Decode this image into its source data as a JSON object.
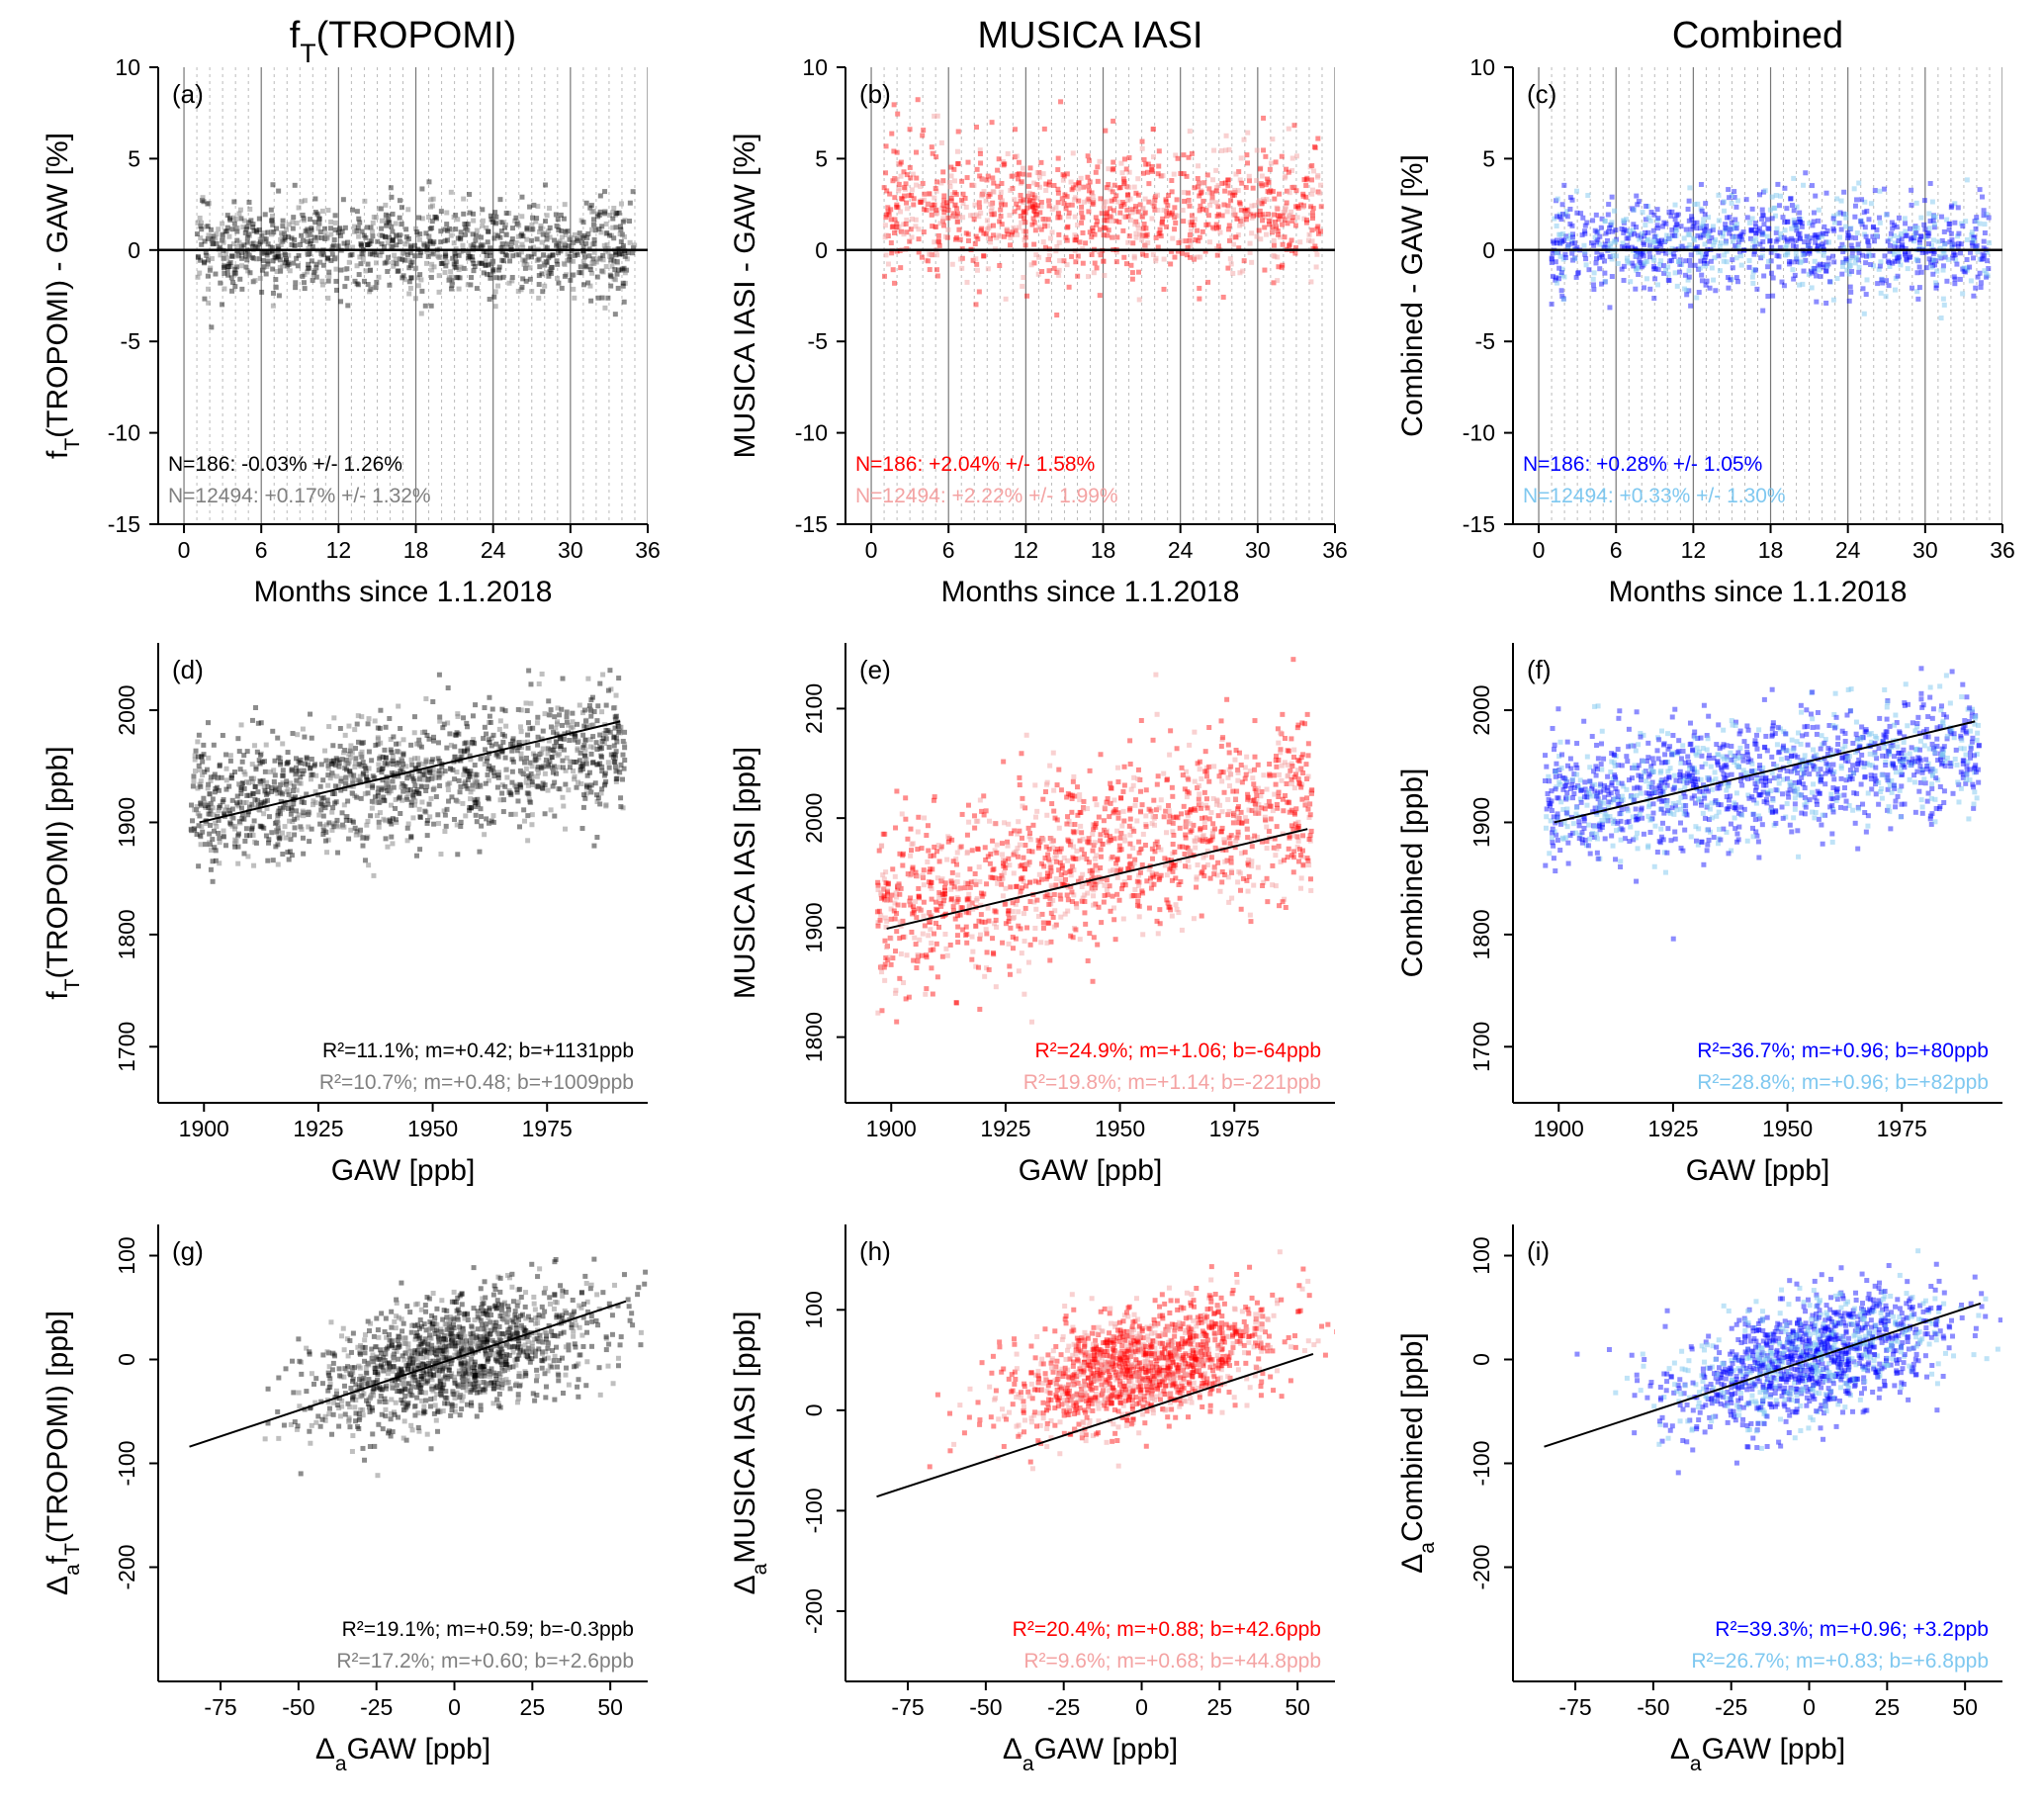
{
  "column_titles": [
    {
      "main": "f",
      "sub": "T",
      "rest": "(TROPOMI)"
    },
    {
      "main": "MUSICA IASI",
      "sub": "",
      "rest": ""
    },
    {
      "main": "Combined",
      "sub": "",
      "rest": ""
    }
  ],
  "colors": {
    "black": "#000000",
    "gray": "#808080",
    "red": "#ff0000",
    "pink": "#f4a3a3",
    "blue": "#0000ff",
    "lightblue": "#7fc8f0"
  },
  "chart_data": [
    {
      "type": "scatter",
      "panel": "(a)",
      "col": 0,
      "row": 0,
      "xlabel": "Months since 1.1.2018",
      "ylabel": [
        "f",
        "T",
        "(TROPOMI) - GAW [%]"
      ],
      "xlim": [
        -2,
        36
      ],
      "ylim": [
        -15,
        10
      ],
      "xticks": [
        "0",
        "6",
        "12",
        "18",
        "24",
        "30",
        "36"
      ],
      "yticks": [
        "-15",
        "-10",
        "-5",
        "0",
        "5",
        "10"
      ],
      "hline": 0,
      "color": "#000000",
      "light": "#808080",
      "stats": [
        "N=186: -0.03% +/- 1.26%",
        "N=12494: +0.17% +/- 1.32%"
      ]
    },
    {
      "type": "scatter",
      "panel": "(b)",
      "col": 1,
      "row": 0,
      "xlabel": "Months since 1.1.2018",
      "ylabel": [
        "MUSICA IASI - GAW [%]"
      ],
      "xlim": [
        -2,
        36
      ],
      "ylim": [
        -15,
        10
      ],
      "xticks": [
        "0",
        "6",
        "12",
        "18",
        "24",
        "30",
        "36"
      ],
      "yticks": [
        "-15",
        "-10",
        "-5",
        "0",
        "5",
        "10"
      ],
      "hline": 0,
      "color": "#ff0000",
      "light": "#f4a3a3",
      "stats": [
        "N=186: +2.04% +/- 1.58%",
        "N=12494: +2.22% +/- 1.99%"
      ]
    },
    {
      "type": "scatter",
      "panel": "(c)",
      "col": 2,
      "row": 0,
      "xlabel": "Months since 1.1.2018",
      "ylabel": [
        "Combined - GAW [%]"
      ],
      "xlim": [
        -2,
        36
      ],
      "ylim": [
        -15,
        10
      ],
      "xticks": [
        "0",
        "6",
        "12",
        "18",
        "24",
        "30",
        "36"
      ],
      "yticks": [
        "-15",
        "-10",
        "-5",
        "0",
        "5",
        "10"
      ],
      "hline": 0,
      "color": "#0000ff",
      "light": "#7fc8f0",
      "stats": [
        "N=186: +0.28% +/- 1.05%",
        "N=12494: +0.33% +/- 1.30%"
      ]
    },
    {
      "type": "scatter",
      "panel": "(d)",
      "col": 0,
      "row": 1,
      "xlabel": "GAW [ppb]",
      "ylabel": [
        "f",
        "T",
        "(TROPOMI) [ppb]"
      ],
      "xlim": [
        1890,
        1997
      ],
      "ylim": [
        1650,
        2060
      ],
      "xticks": [
        "1900",
        "1925",
        "1950",
        "1975"
      ],
      "yticks": [
        "1700",
        "1800",
        "1900",
        "2000"
      ],
      "fit": {
        "x": [
          1899,
          1991
        ],
        "y": [
          1900,
          1990
        ]
      },
      "color": "#000000",
      "light": "#808080",
      "stats": [
        "R²=11.1%; m=+0.42; b=+1131ppb",
        "R²=10.7%; m=+0.48; b=+1009ppb"
      ]
    },
    {
      "type": "scatter",
      "panel": "(e)",
      "col": 1,
      "row": 1,
      "xlabel": "GAW [ppb]",
      "ylabel": [
        "MUSICA IASI [ppb]"
      ],
      "xlim": [
        1890,
        1997
      ],
      "ylim": [
        1740,
        2160
      ],
      "xticks": [
        "1900",
        "1925",
        "1950",
        "1975"
      ],
      "yticks": [
        "1800",
        "1900",
        "2000",
        "2100"
      ],
      "fit": {
        "x": [
          1899,
          1991
        ],
        "y": [
          1899,
          1990
        ]
      },
      "color": "#ff0000",
      "light": "#f4a3a3",
      "stats": [
        "R²=24.9%; m=+1.06; b=-64ppb",
        "R²=19.8%; m=+1.14; b=-221ppb"
      ]
    },
    {
      "type": "scatter",
      "panel": "(f)",
      "col": 2,
      "row": 1,
      "xlabel": "GAW [ppb]",
      "ylabel": [
        "Combined [ppb]"
      ],
      "xlim": [
        1890,
        1997
      ],
      "ylim": [
        1650,
        2060
      ],
      "xticks": [
        "1900",
        "1925",
        "1950",
        "1975"
      ],
      "yticks": [
        "1700",
        "1800",
        "1900",
        "2000"
      ],
      "fit": {
        "x": [
          1899,
          1991
        ],
        "y": [
          1900,
          1990
        ]
      },
      "color": "#0000ff",
      "light": "#7fc8f0",
      "stats": [
        "R²=36.7%; m=+0.96; b=+80ppb",
        "R²=28.8%; m=+0.96; b=+82ppb"
      ]
    },
    {
      "type": "scatter",
      "panel": "(g)",
      "col": 0,
      "row": 2,
      "xlabel": [
        "Δ",
        "a",
        "GAW [ppb]"
      ],
      "ylabel": [
        "Δ",
        "a",
        "f",
        "T",
        "(TROPOMI) [ppb]"
      ],
      "xlim": [
        -95,
        62
      ],
      "ylim": [
        -310,
        130
      ],
      "xticks": [
        "-75",
        "-50",
        "-25",
        "0",
        "25",
        "50"
      ],
      "yticks": [
        "-200",
        "-100",
        "0",
        "100"
      ],
      "fit": {
        "x": [
          -85,
          55
        ],
        "y": [
          -84,
          56
        ]
      },
      "color": "#000000",
      "light": "#808080",
      "stats": [
        "R²=19.1%; m=+0.59; b=-0.3ppb",
        "R²=17.2%; m=+0.60; b=+2.6ppb"
      ]
    },
    {
      "type": "scatter",
      "panel": "(h)",
      "col": 1,
      "row": 2,
      "xlabel": [
        "Δ",
        "a",
        "GAW [ppb]"
      ],
      "ylabel": [
        "Δ",
        "a",
        "MUSICA IASI [ppb]"
      ],
      "xlim": [
        -95,
        62
      ],
      "ylim": [
        -270,
        185
      ],
      "xticks": [
        "-75",
        "-50",
        "-25",
        "0",
        "25",
        "50"
      ],
      "yticks": [
        "-200",
        "-100",
        "0",
        "100"
      ],
      "fit": {
        "x": [
          -85,
          55
        ],
        "y": [
          -86,
          56
        ]
      },
      "color": "#ff0000",
      "light": "#f4a3a3",
      "stats": [
        "R²=20.4%; m=+0.88; b=+42.6ppb",
        "R²=9.6%; m=+0.68; b=+44.8ppb"
      ]
    },
    {
      "type": "scatter",
      "panel": "(i)",
      "col": 2,
      "row": 2,
      "xlabel": [
        "Δ",
        "a",
        "GAW [ppb]"
      ],
      "ylabel": [
        "Δ",
        "a",
        "Combined [ppb]"
      ],
      "xlim": [
        -95,
        62
      ],
      "ylim": [
        -310,
        130
      ],
      "xticks": [
        "-75",
        "-50",
        "-25",
        "0",
        "25",
        "50"
      ],
      "yticks": [
        "-200",
        "-100",
        "0",
        "100"
      ],
      "fit": {
        "x": [
          -85,
          55
        ],
        "y": [
          -84,
          54
        ]
      },
      "color": "#0000ff",
      "light": "#7fc8f0",
      "stats": [
        "R²=39.3%; m=+0.96; +3.2ppb",
        "R²=26.7%; m=+0.83; b=+6.8ppb"
      ]
    }
  ]
}
